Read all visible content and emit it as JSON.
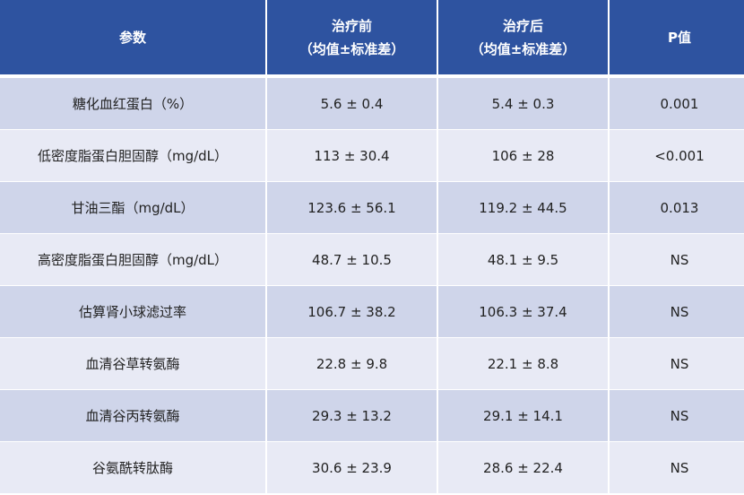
{
  "header": {
    "param": "参数",
    "before_line1": "治疗前",
    "before_line2": "（均值±标准差）",
    "after_line1": "治疗后",
    "after_line2": "（均值±标准差）",
    "p": "P值"
  },
  "rows": [
    {
      "param": "糖化血红蛋白（%）",
      "before": "5.6 ± 0.4",
      "after": "5.4 ± 0.3",
      "p": "0.001"
    },
    {
      "param": "低密度脂蛋白胆固醇（mg/dL）",
      "before": "113 ± 30.4",
      "after": "106 ± 28",
      "p": "<0.001"
    },
    {
      "param": "甘油三酯（mg/dL）",
      "before": "123.6 ± 56.1",
      "after": "119.2 ± 44.5",
      "p": "0.013"
    },
    {
      "param": "高密度脂蛋白胆固醇（mg/dL）",
      "before": "48.7 ± 10.5",
      "after": "48.1 ± 9.5",
      "p": "NS"
    },
    {
      "param": "估算肾小球滤过率",
      "before": "106.7 ± 38.2",
      "after": "106.3 ± 37.4",
      "p": "NS"
    },
    {
      "param": "血清谷草转氨酶",
      "before": "22.8 ± 9.8",
      "after": "22.1 ± 8.8",
      "p": "NS"
    },
    {
      "param": "血清谷丙转氨酶",
      "before": "29.3 ± 13.2",
      "after": "29.1 ± 14.1",
      "p": "NS"
    },
    {
      "param": "谷氨酰转肽酶",
      "before": "30.6 ± 23.9",
      "after": "28.6 ± 22.4",
      "p": "NS"
    }
  ],
  "colors": {
    "header": "#2e53a0",
    "row_dark": "#cfd5ea",
    "row_light": "#e8eaf5"
  }
}
